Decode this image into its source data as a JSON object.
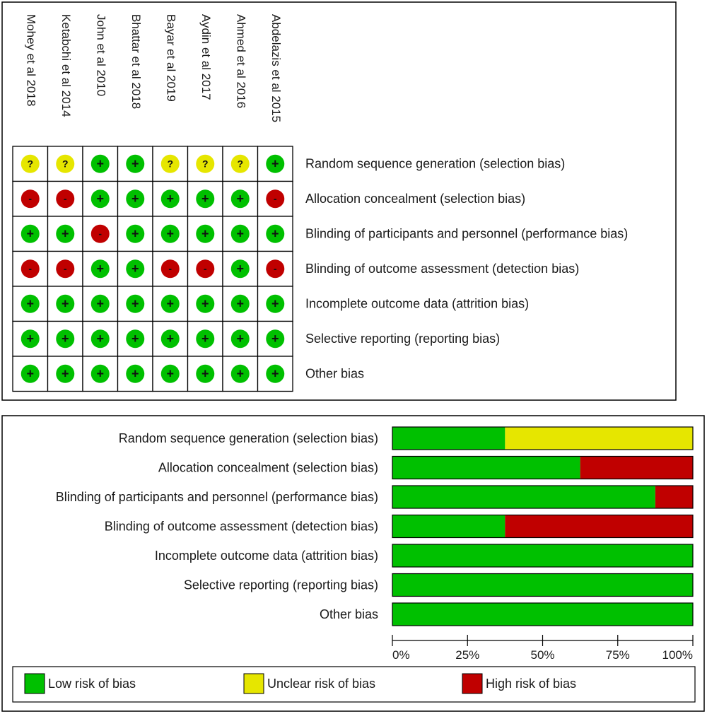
{
  "colors": {
    "low": "#00c000",
    "unclear": "#e6e600",
    "high": "#c00000",
    "border": "#000000",
    "text": "#1a1a1a",
    "background": "#ffffff"
  },
  "chart_data": [
    {
      "type": "table",
      "studies": [
        "Mohey et al 2018",
        "Ketabchi et al 2014",
        "John et al 2010",
        "Bhattar et al 2018",
        "Bayar et al 2019",
        "Aydin et al 2017",
        "Ahmed et al 2016",
        "Abdelazis et al 2015"
      ],
      "domains": [
        "Random sequence generation (selection bias)",
        "Allocation concealment (selection bias)",
        "Blinding of participants and personnel (performance bias)",
        "Blinding of outcome assessment (detection bias)",
        "Incomplete outcome data (attrition bias)",
        "Selective reporting (reporting bias)",
        "Other bias"
      ],
      "judgements": [
        [
          "unclear",
          "unclear",
          "low",
          "low",
          "unclear",
          "unclear",
          "unclear",
          "low"
        ],
        [
          "high",
          "high",
          "low",
          "low",
          "low",
          "low",
          "low",
          "high"
        ],
        [
          "low",
          "low",
          "high",
          "low",
          "low",
          "low",
          "low",
          "low"
        ],
        [
          "high",
          "high",
          "low",
          "low",
          "high",
          "high",
          "low",
          "high"
        ],
        [
          "low",
          "low",
          "low",
          "low",
          "low",
          "low",
          "low",
          "low"
        ],
        [
          "low",
          "low",
          "low",
          "low",
          "low",
          "low",
          "low",
          "low"
        ],
        [
          "low",
          "low",
          "low",
          "low",
          "low",
          "low",
          "low",
          "low"
        ]
      ],
      "symbols": {
        "low": "+",
        "unclear": "?",
        "high": "-"
      }
    },
    {
      "type": "bar",
      "orientation": "horizontal",
      "stacked": true,
      "categories": [
        "Random sequence generation (selection bias)",
        "Allocation concealment (selection bias)",
        "Blinding of participants and personnel (performance bias)",
        "Blinding of outcome assessment (detection bias)",
        "Incomplete outcome data (attrition bias)",
        "Selective reporting (reporting bias)",
        "Other bias"
      ],
      "series": [
        {
          "name": "Low risk of bias",
          "key": "low",
          "values": [
            37.5,
            62.5,
            87.5,
            37.5,
            100,
            100,
            100
          ]
        },
        {
          "name": "Unclear risk of bias",
          "key": "unclear",
          "values": [
            62.5,
            0,
            0,
            0,
            0,
            0,
            0
          ]
        },
        {
          "name": "High risk of bias",
          "key": "high",
          "values": [
            0,
            37.5,
            12.5,
            62.5,
            0,
            0,
            0
          ]
        }
      ],
      "xlim": [
        0,
        100
      ],
      "xticks": [
        0,
        25,
        50,
        75,
        100
      ],
      "xtick_labels": [
        "0%",
        "25%",
        "50%",
        "75%",
        "100%"
      ],
      "legend": {
        "position": "bottom",
        "entries": [
          "Low risk of bias",
          "Unclear risk of bias",
          "High risk of bias"
        ]
      }
    }
  ]
}
